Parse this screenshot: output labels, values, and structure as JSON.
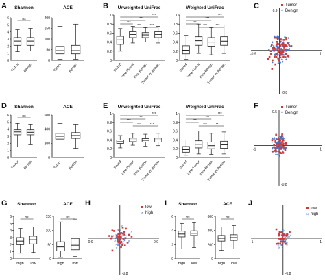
{
  "colors": {
    "red": "#cc3b3b",
    "blue": "#4a78c8",
    "axis": "#111111",
    "box": "#222222"
  },
  "chart_data": [
    {
      "id": "A",
      "type": "box",
      "panel": "A",
      "charts": [
        {
          "title": "Shannon",
          "categories": [
            "Tumor",
            "Benign"
          ],
          "ylim": [
            0,
            6
          ],
          "yticks": [
            0,
            1,
            2,
            3,
            4,
            5,
            6
          ],
          "sig": [
            "ns"
          ],
          "boxes": [
            [
              1.2,
              2.1,
              2.7,
              3.2,
              4.3
            ],
            [
              1.3,
              2.1,
              2.7,
              3.2,
              4.5
            ]
          ]
        },
        {
          "title": "ACE",
          "categories": [
            "Tumor",
            "Benign"
          ],
          "ylim": [
            0,
            200
          ],
          "yticks": [
            0,
            50,
            100,
            150,
            200
          ],
          "sig": [],
          "boxes": [
            [
              5,
              30,
              45,
              65,
              160
            ],
            [
              5,
              30,
              45,
              70,
              170
            ]
          ]
        }
      ]
    },
    {
      "id": "B",
      "type": "box",
      "panel": "B",
      "charts": [
        {
          "title": "Unweighted UniFrac",
          "categories": [
            "Paired",
            "intra-Tumor",
            "intra-Benign",
            "Tumor vs Benign"
          ],
          "ylim": [
            0,
            1
          ],
          "yticks": [
            0,
            0.2,
            0.4,
            0.6,
            0.8,
            1.0
          ],
          "sig": [
            "***",
            "***",
            "***",
            "***",
            "***"
          ],
          "boxes": [
            [
              0.2,
              0.35,
              0.45,
              0.53,
              0.7
            ],
            [
              0.38,
              0.5,
              0.57,
              0.63,
              0.75
            ],
            [
              0.4,
              0.5,
              0.56,
              0.61,
              0.72
            ],
            [
              0.38,
              0.5,
              0.57,
              0.63,
              0.75
            ]
          ]
        },
        {
          "title": "Weighted UniFrac",
          "categories": [
            "Paired",
            "intra-Tumor",
            "intra-Benign",
            "Tumor vs Benign"
          ],
          "ylim": [
            0,
            1
          ],
          "yticks": [
            0,
            0.2,
            0.4,
            0.6,
            0.8,
            1.0
          ],
          "sig": [
            "***",
            "***",
            "***",
            "***",
            "***"
          ],
          "boxes": [
            [
              0.02,
              0.14,
              0.22,
              0.32,
              0.55
            ],
            [
              0.15,
              0.33,
              0.43,
              0.52,
              0.8
            ],
            [
              0.12,
              0.31,
              0.4,
              0.5,
              0.72
            ],
            [
              0.15,
              0.33,
              0.42,
              0.52,
              0.78
            ]
          ]
        }
      ]
    },
    {
      "id": "C",
      "type": "scatter",
      "panel": "C",
      "legend": [
        "Tumor",
        "Benign"
      ],
      "ticks": {
        "top": "0.9",
        "bottom": "-0.8",
        "left": "-0.9",
        "right": "1"
      }
    },
    {
      "id": "D",
      "type": "box",
      "panel": "D",
      "charts": [
        {
          "title": "Shannon",
          "categories": [
            "Tumor",
            "Benign"
          ],
          "ylim": [
            0,
            6
          ],
          "yticks": [
            0,
            1,
            2,
            3,
            4,
            5,
            6
          ],
          "sig": [
            "ns"
          ],
          "boxes": [
            [
              1.5,
              3.2,
              3.6,
              3.9,
              4.8
            ],
            [
              1.8,
              3.2,
              3.55,
              3.9,
              4.7
            ]
          ]
        },
        {
          "title": "ACE",
          "categories": [
            "Tumor",
            "Benign"
          ],
          "ylim": [
            0,
            600
          ],
          "yticks": [
            0,
            200,
            400,
            600
          ],
          "sig": [],
          "boxes": [
            [
              120,
              260,
              300,
              340,
              480
            ],
            [
              130,
              270,
              310,
              350,
              470
            ]
          ]
        }
      ]
    },
    {
      "id": "E",
      "type": "box",
      "panel": "E",
      "charts": [
        {
          "title": "Unweighted UniFrac",
          "categories": [
            "Paired",
            "intra-Tumor",
            "intra-Benign",
            "Tumor vs Benign"
          ],
          "ylim": [
            0,
            1
          ],
          "yticks": [
            0,
            0.2,
            0.4,
            0.6,
            0.8,
            1.0
          ],
          "sig": [
            "***",
            "***",
            "***",
            "***",
            "***"
          ],
          "boxes": [
            [
              0.22,
              0.32,
              0.36,
              0.4,
              0.5
            ],
            [
              0.28,
              0.36,
              0.4,
              0.44,
              0.55
            ],
            [
              0.26,
              0.35,
              0.39,
              0.43,
              0.53
            ],
            [
              0.27,
              0.35,
              0.4,
              0.44,
              0.55
            ]
          ]
        },
        {
          "title": "Weighted UniFrac",
          "categories": [
            "Paired",
            "intra-Tumor",
            "intra-Benign",
            "Tumor vs Benign"
          ],
          "ylim": [
            0,
            1
          ],
          "yticks": [
            0,
            0.2,
            0.4,
            0.6,
            0.8,
            1.0
          ],
          "sig": [
            "***",
            "***",
            "***",
            "***",
            "***"
          ],
          "boxes": [
            [
              0.05,
              0.12,
              0.18,
              0.25,
              0.4
            ],
            [
              0.08,
              0.22,
              0.3,
              0.38,
              0.6
            ],
            [
              0.07,
              0.2,
              0.27,
              0.35,
              0.55
            ],
            [
              0.08,
              0.21,
              0.29,
              0.37,
              0.58
            ]
          ]
        }
      ]
    },
    {
      "id": "F",
      "type": "scatter",
      "panel": "F",
      "legend": [
        "Tumor",
        "Benign"
      ],
      "ticks": {
        "top": "0.5",
        "bottom": "-0.8",
        "left": "-1",
        "right": "1"
      }
    },
    {
      "id": "G",
      "type": "box",
      "panel": "G",
      "charts": [
        {
          "title": "Shannon",
          "categories": [
            "high",
            "low"
          ],
          "ylim": [
            0,
            6
          ],
          "yticks": [
            0,
            1,
            2,
            3,
            4,
            5,
            6
          ],
          "sig": [
            "ns"
          ],
          "boxes": [
            [
              0.8,
              2.0,
              2.5,
              3.0,
              4.3
            ],
            [
              0.9,
              2.1,
              2.7,
              3.2,
              4.5
            ]
          ]
        },
        {
          "title": "ACE",
          "categories": [
            "high",
            "low"
          ],
          "ylim": [
            0,
            150
          ],
          "yticks": [
            0,
            50,
            100,
            150
          ],
          "sig": [
            "ns"
          ],
          "boxes": [
            [
              5,
              28,
              42,
              60,
              130
            ],
            [
              8,
              32,
              48,
              72,
              140
            ]
          ]
        }
      ]
    },
    {
      "id": "H",
      "type": "scatter",
      "panel": "H",
      "legend": [
        "low",
        "high"
      ],
      "markers": [
        "square",
        "cross"
      ],
      "ticks": {
        "top": "",
        "bottom": "-0.8",
        "left": "-0.9",
        "right": "0.9"
      }
    },
    {
      "id": "I",
      "type": "box",
      "panel": "I",
      "charts": [
        {
          "title": "Shannon",
          "categories": [
            "high",
            "low"
          ],
          "ylim": [
            0,
            6
          ],
          "yticks": [
            0,
            2,
            4,
            6
          ],
          "sig": [
            "ns"
          ],
          "boxes": [
            [
              1.4,
              3.1,
              3.5,
              3.9,
              5.0
            ],
            [
              1.6,
              3.3,
              3.6,
              3.95,
              5.1
            ]
          ]
        },
        {
          "title": "ACE",
          "categories": [
            "high",
            "low"
          ],
          "ylim": [
            0,
            600
          ],
          "yticks": [
            0,
            200,
            400,
            600
          ],
          "sig": [
            "ns"
          ],
          "boxes": [
            [
              120,
              250,
              290,
              330,
              450
            ],
            [
              140,
              260,
              300,
              340,
              470
            ]
          ]
        }
      ]
    },
    {
      "id": "J",
      "type": "scatter",
      "panel": "J",
      "legend": [
        "low",
        "high"
      ],
      "markers": [
        "square",
        "cross"
      ],
      "ticks": {
        "top": "",
        "bottom": "-0.8",
        "left": "-1",
        "right": "1"
      }
    }
  ]
}
